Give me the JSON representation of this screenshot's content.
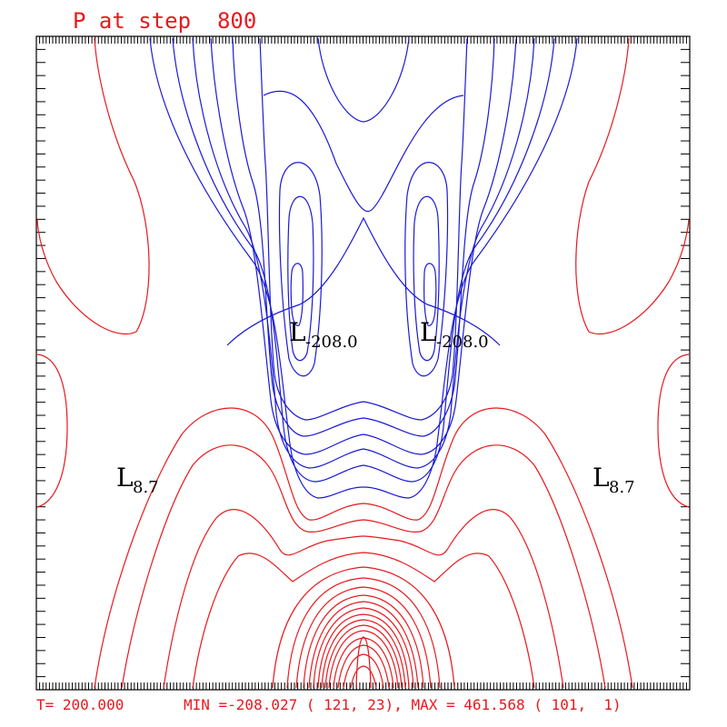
{
  "title": "P at step  800",
  "footer": {
    "time": "T= 200.000",
    "stats": "MIN =-208.027 ( 121, 23), MAX = 461.568 ( 101,  1)"
  },
  "colors": {
    "positive": "#e8191e",
    "negative": "#1a1ad6",
    "frame": "#000000"
  },
  "chart_data": {
    "type": "contour",
    "title": "P at step  800",
    "field": "P",
    "step": 800,
    "time": 200.0,
    "min": {
      "value": -208.027,
      "i": 121,
      "j": 23
    },
    "max": {
      "value": 461.568,
      "i": 101,
      "j": 1
    },
    "extrema_labels": [
      {
        "kind": "L",
        "value": "-208.0",
        "text_main": "L",
        "text_sub": "-208.0",
        "side": "left-center"
      },
      {
        "kind": "L",
        "value": "-208.0",
        "text_main": "L",
        "text_sub": "-208.0",
        "side": "right-center"
      },
      {
        "kind": "L",
        "value": "8.7",
        "text_main": "L",
        "text_sub": "8.7",
        "side": "left"
      },
      {
        "kind": "L",
        "value": "8.7",
        "text_main": "L",
        "text_sub": "8.7",
        "side": "right"
      }
    ],
    "legend": "none",
    "grid": false
  }
}
